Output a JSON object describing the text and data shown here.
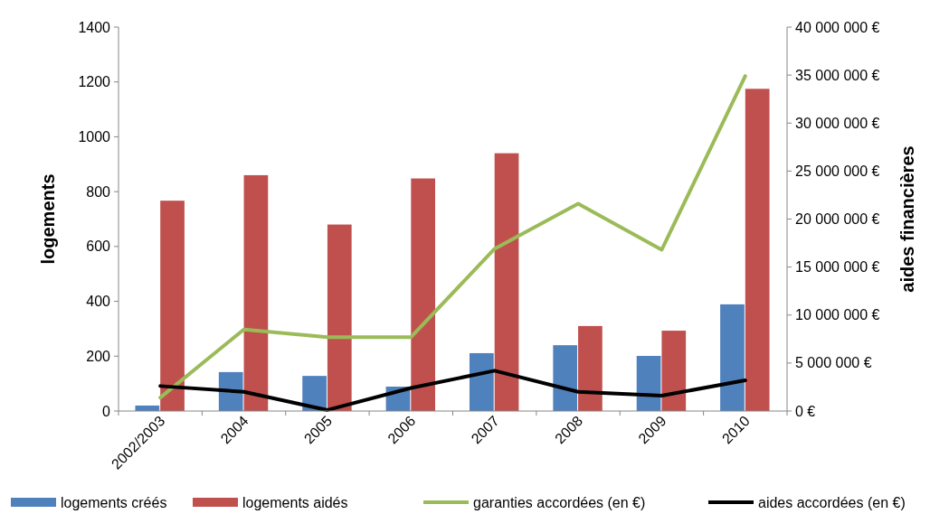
{
  "chart_data": {
    "type": "bar",
    "ylabel": "logements",
    "y2label": "aides financières",
    "categories": [
      "2002/2003",
      "2004",
      "2005",
      "2006",
      "2007",
      "2008",
      "2009",
      "2010"
    ],
    "series": [
      {
        "name": "logements créés",
        "color": "#4f81bd",
        "values": [
          20,
          142,
          128,
          89,
          211,
          240,
          201,
          389
        ]
      },
      {
        "name": "logements aidés",
        "color": "#c0504d",
        "values": [
          767,
          860,
          680,
          848,
          940,
          310,
          293,
          1175
        ]
      },
      {
        "name": "garanties accordées (en €)",
        "type": "line",
        "axis": "y2",
        "color": "#9bbb59",
        "values": [
          1400000,
          8500000,
          7700000,
          7700000,
          16900000,
          21600000,
          16800000,
          34900000
        ]
      },
      {
        "name": "aides accordées (en €)",
        "type": "line",
        "axis": "y2",
        "color": "#000000",
        "values": [
          2600000,
          2000000,
          100000,
          2400000,
          4200000,
          2000000,
          1600000,
          3200000
        ]
      }
    ],
    "ylim": [
      0,
      1400
    ],
    "yticks": [
      0,
      200,
      400,
      600,
      800,
      1000,
      1200,
      1400
    ],
    "y2lim": [
      0,
      40000000
    ],
    "y2ticks": [
      {
        "value": 0,
        "label": "0 €"
      },
      {
        "value": 5000000,
        "label": "5 000 000 €"
      },
      {
        "value": 10000000,
        "label": "10 000 000 €"
      },
      {
        "value": 15000000,
        "label": "15 000 000 €"
      },
      {
        "value": 20000000,
        "label": "20 000 000 €"
      },
      {
        "value": 25000000,
        "label": "25 000 000 €"
      },
      {
        "value": 30000000,
        "label": "30 000 000 €"
      },
      {
        "value": 35000000,
        "label": "35 000 000 €"
      },
      {
        "value": 40000000,
        "label": "40 000 000 €"
      }
    ],
    "legend": "bottom",
    "marker": "none",
    "line_style": "solid"
  }
}
